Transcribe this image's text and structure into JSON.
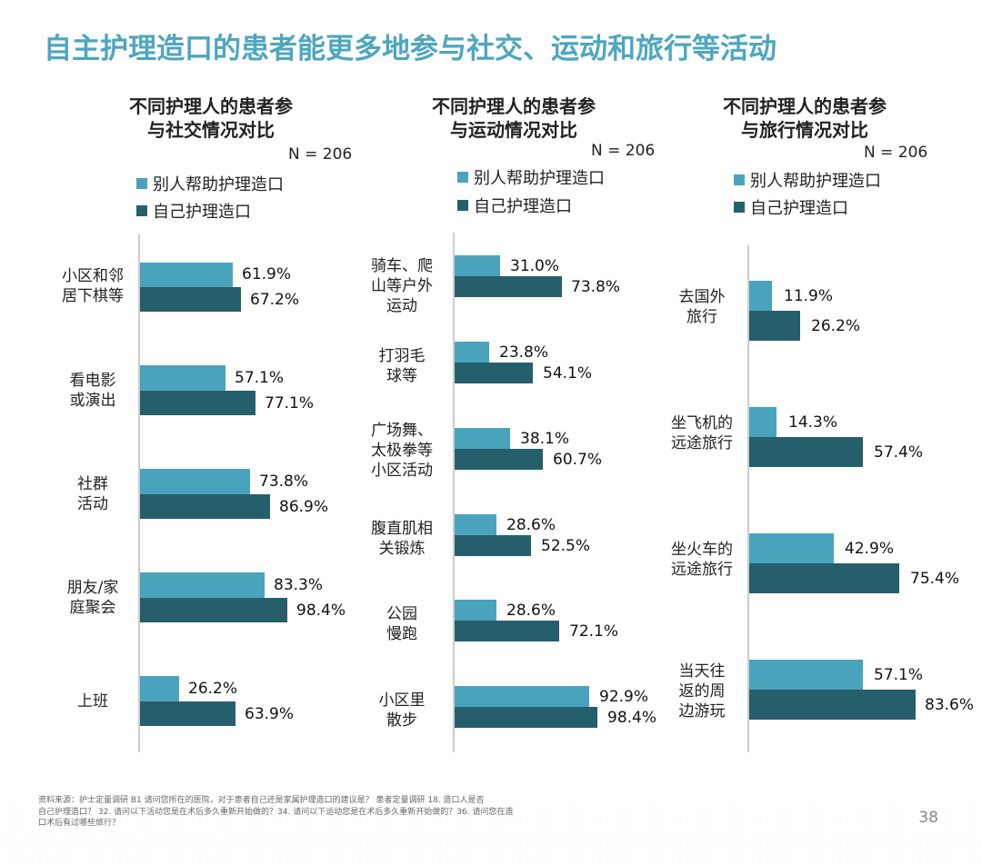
{
  "title": "自主护理造口的患者能更多地参与社交、运动和旅行等活动",
  "legend": {
    "series_1": "别人帮助护理造口",
    "series_2": "自己护理造口"
  },
  "charts": {
    "social": {
      "title_line_1": "不同护理人的患者参",
      "title_line_2": "与社交情况对比",
      "n": "N = 206",
      "value_labels": {
        "0": {
          "series_1": "61.9%",
          "series_2": "67.2%"
        },
        "1": {
          "series_1": "57.1%",
          "series_2": "77.1%"
        },
        "2": {
          "series_1": "73.8%",
          "series_2": "86.9%"
        },
        "3": {
          "series_1": "83.3%",
          "series_2": "98.4%"
        },
        "4": {
          "series_1": "26.2%",
          "series_2": "63.9%"
        }
      },
      "category_lines": {
        "0": {
          "0": "小区和邻",
          "1": "居下棋等"
        },
        "1": {
          "0": "看电影",
          "1": "或演出"
        },
        "2": {
          "0": "社群",
          "1": "活动"
        },
        "3": {
          "0": "朋友/家",
          "1": "庭聚会"
        },
        "4": {
          "0": "上班"
        }
      }
    },
    "sports": {
      "title_line_1": "不同护理人的患者参",
      "title_line_2": "与运动情况对比",
      "n": "N = 206",
      "value_labels": {
        "0": {
          "series_1": "31.0%",
          "series_2": "73.8%"
        },
        "1": {
          "series_1": "23.8%",
          "series_2": "54.1%"
        },
        "2": {
          "series_1": "38.1%",
          "series_2": "60.7%"
        },
        "3": {
          "series_1": "28.6%",
          "series_2": "52.5%"
        },
        "4": {
          "series_1": "28.6%",
          "series_2": "72.1%"
        },
        "5": {
          "series_1": "92.9%",
          "series_2": "98.4%"
        }
      },
      "category_lines": {
        "0": {
          "0": "骑车、爬",
          "1": "山等户外",
          "2": "运动"
        },
        "1": {
          "0": "打羽毛",
          "1": "球等"
        },
        "2": {
          "0": "广场舞、",
          "1": "太极拳等",
          "2": "小区活动"
        },
        "3": {
          "0": "腹直肌相",
          "1": "关锻炼"
        },
        "4": {
          "0": "公园",
          "1": "慢跑"
        },
        "5": {
          "0": "小区里",
          "1": "散步"
        }
      }
    },
    "travel": {
      "title_line_1": "不同护理人的患者参",
      "title_line_2": "与旅行情况对比",
      "n": "N = 206",
      "value_labels": {
        "0": {
          "series_1": "11.9%",
          "series_2": "26.2%"
        },
        "1": {
          "series_1": "14.3%",
          "series_2": "57.4%"
        },
        "2": {
          "series_1": "42.9%",
          "series_2": "75.4%"
        },
        "3": {
          "series_1": "57.1%",
          "series_2": "83.6%"
        }
      },
      "category_lines": {
        "0": {
          "0": "去国外",
          "1": "旅行"
        },
        "1": {
          "0": "坐飞机的",
          "1": "远途旅行"
        },
        "2": {
          "0": "坐火车的",
          "1": "远途旅行"
        },
        "3": {
          "0": "当天往",
          "1": "返的周",
          "2": "边游玩"
        }
      }
    }
  },
  "source_note_line_1": "资料来源：护士定量调研    B1 请问您所在的医院，对于患者自己还是家属护理造口的建议是？      患者定量调研    18. 造口人是否",
  "source_note_line_2": "自己护理造口？   32. 请问以下活动您是在术后多久重新开始做的？34. 请问以下运动您是在术后多久重新开始做的？36. 请问您在造",
  "source_note_line_3": "口术后有过哪些旅行？",
  "page_number": "38",
  "colors": {
    "title": "#4ea6bf",
    "series_1": "#4aa3bd",
    "series_2": "#265f6c"
  },
  "chart_data": [
    {
      "type": "bar",
      "title": "不同护理人的患者参与社交情况对比",
      "subtitle": "N = 206",
      "categories": [
        "小区和邻居下棋等",
        "看电影或演出",
        "社群活动",
        "朋友/家庭聚会",
        "上班"
      ],
      "series": [
        {
          "name": "别人帮助护理造口",
          "values": [
            61.9,
            57.1,
            73.8,
            83.3,
            26.2
          ]
        },
        {
          "name": "自己护理造口",
          "values": [
            67.2,
            77.1,
            86.9,
            98.4,
            63.9
          ]
        }
      ],
      "xlim": [
        0,
        100
      ],
      "orientation": "horizontal",
      "legend": "top-left"
    },
    {
      "type": "bar",
      "title": "不同护理人的患者参与运动情况对比",
      "subtitle": "N = 206",
      "categories": [
        "骑车、爬山等户外运动",
        "打羽毛球等",
        "广场舞、太极拳等小区活动",
        "腹直肌相关锻炼",
        "公园慢跑",
        "小区里散步"
      ],
      "series": [
        {
          "name": "别人帮助护理造口",
          "values": [
            31.0,
            23.8,
            38.1,
            28.6,
            28.6,
            92.9
          ]
        },
        {
          "name": "自己护理造口",
          "values": [
            73.8,
            54.1,
            60.7,
            52.5,
            72.1,
            98.4
          ]
        }
      ],
      "xlim": [
        0,
        100
      ],
      "orientation": "horizontal",
      "legend": "top-left"
    },
    {
      "type": "bar",
      "title": "不同护理人的患者参与旅行情况对比",
      "subtitle": "N = 206",
      "categories": [
        "去国外旅行",
        "坐飞机的远途旅行",
        "坐火车的远途旅行",
        "当天往返的周边游玩"
      ],
      "series": [
        {
          "name": "别人帮助护理造口",
          "values": [
            11.9,
            14.3,
            42.9,
            57.1
          ]
        },
        {
          "name": "自己护理造口",
          "values": [
            26.2,
            57.4,
            75.4,
            83.6
          ]
        }
      ],
      "xlim": [
        0,
        100
      ],
      "orientation": "horizontal",
      "legend": "top-left"
    }
  ]
}
